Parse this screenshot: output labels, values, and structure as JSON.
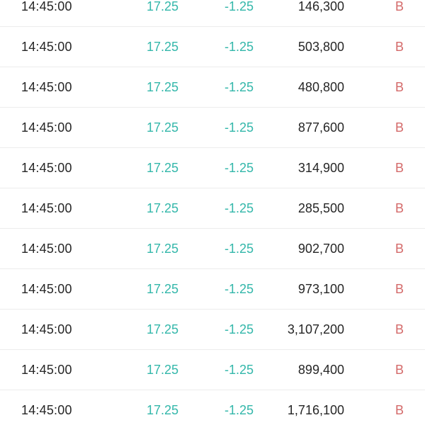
{
  "colors": {
    "price": "#33b7aa",
    "change": "#33b7aa",
    "side": "#d46a6a",
    "text": "#262626",
    "divider": "#ececec"
  },
  "trades": [
    {
      "time": "14:45:00",
      "price": "17.25",
      "change": "-1.25",
      "volume": "146,300",
      "side": "B"
    },
    {
      "time": "14:45:00",
      "price": "17.25",
      "change": "-1.25",
      "volume": "503,800",
      "side": "B"
    },
    {
      "time": "14:45:00",
      "price": "17.25",
      "change": "-1.25",
      "volume": "480,800",
      "side": "B"
    },
    {
      "time": "14:45:00",
      "price": "17.25",
      "change": "-1.25",
      "volume": "877,600",
      "side": "B"
    },
    {
      "time": "14:45:00",
      "price": "17.25",
      "change": "-1.25",
      "volume": "314,900",
      "side": "B"
    },
    {
      "time": "14:45:00",
      "price": "17.25",
      "change": "-1.25",
      "volume": "285,500",
      "side": "B"
    },
    {
      "time": "14:45:00",
      "price": "17.25",
      "change": "-1.25",
      "volume": "902,700",
      "side": "B"
    },
    {
      "time": "14:45:00",
      "price": "17.25",
      "change": "-1.25",
      "volume": "973,100",
      "side": "B"
    },
    {
      "time": "14:45:00",
      "price": "17.25",
      "change": "-1.25",
      "volume": "3,107,200",
      "side": "B"
    },
    {
      "time": "14:45:00",
      "price": "17.25",
      "change": "-1.25",
      "volume": "899,400",
      "side": "B"
    },
    {
      "time": "14:45:00",
      "price": "17.25",
      "change": "-1.25",
      "volume": "1,716,100",
      "side": "B"
    }
  ]
}
